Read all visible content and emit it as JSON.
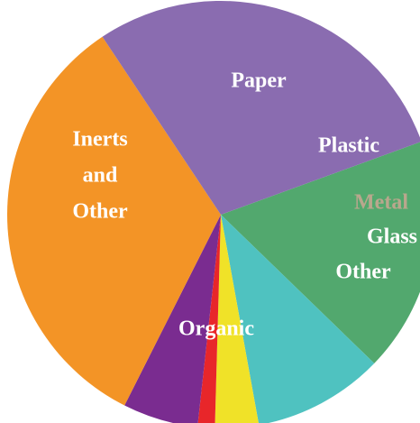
{
  "chart_data": {
    "type": "pie",
    "title": "",
    "slices": [
      {
        "label": "Paper",
        "label_lines": [
          "Paper"
        ],
        "value": 17.8,
        "color": "#52a86e",
        "label_color": "#ffffff"
      },
      {
        "label": "Plastic",
        "label_lines": [
          "Plastic"
        ],
        "value": 9.9,
        "color": "#4fc2c0",
        "label_color": "#ffffff"
      },
      {
        "label": "Metal",
        "label_lines": [
          "Metal"
        ],
        "value": 3.3,
        "color": "#f0e228",
        "label_color": "#b9a78d"
      },
      {
        "label": "Glass",
        "label_lines": [
          "Glass"
        ],
        "value": 1.3,
        "color": "#e8262a",
        "label_color": "#ffffff"
      },
      {
        "label": "Other",
        "label_lines": [
          "Other"
        ],
        "value": 5.7,
        "color": "#7a2c90",
        "label_color": "#ffffff"
      },
      {
        "label": "Organic",
        "label_lines": [
          "Organic"
        ],
        "value": 33.2,
        "color": "#f39426",
        "label_color": "#ffffff"
      },
      {
        "label": "Inerts and Other",
        "label_lines": [
          "Inerts",
          "and",
          "Other"
        ],
        "value": 28.8,
        "color": "#8a6cb0",
        "label_color": "#ffffff"
      }
    ],
    "start_angle_deg": -20,
    "direction": "clockwise",
    "legend": "none"
  }
}
